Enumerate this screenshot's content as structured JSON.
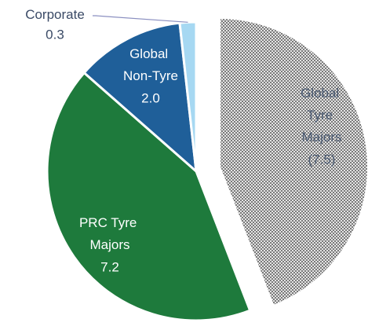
{
  "chart_data": {
    "type": "pie",
    "categories": [
      "Global Tyre Majors",
      "PRC Tyre Majors",
      "Global Non-Tyre",
      "Corporate"
    ],
    "values": [
      7.5,
      7.2,
      2.0,
      0.3
    ],
    "value_labels": [
      "(7.5)",
      "7.2",
      "2.0",
      "0.3"
    ],
    "colors": [
      "hatched",
      "#1e7a3c",
      "#1f5f99",
      "#a6d8f2"
    ],
    "exploded": [
      true,
      false,
      false,
      false
    ]
  }
}
